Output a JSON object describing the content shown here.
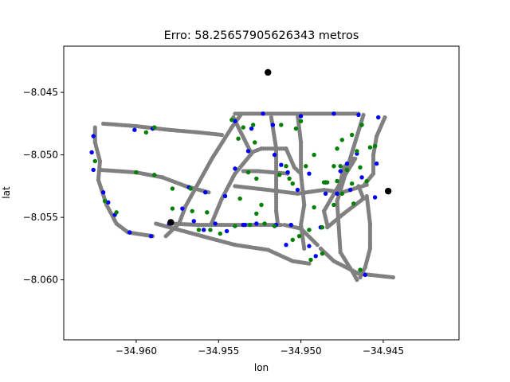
{
  "chart_data": {
    "type": "scatter",
    "title": "Erro: 58.25657905626343 metros",
    "xlabel": "lon",
    "ylabel": "lat",
    "xlim": [
      -34.9644,
      -34.9404
    ],
    "ylim": [
      -8.0648,
      -8.0413
    ],
    "grid": false,
    "x_ticks": [
      {
        "value": -34.96,
        "label": "−34.960"
      },
      {
        "value": -34.955,
        "label": "−34.955"
      },
      {
        "value": -34.95,
        "label": "−34.950"
      },
      {
        "value": -34.945,
        "label": "−34.945"
      }
    ],
    "y_ticks": [
      {
        "value": -8.045,
        "label": "−8.045"
      },
      {
        "value": -8.05,
        "label": "−8.050"
      },
      {
        "value": -8.055,
        "label": "−8.055"
      },
      {
        "value": -8.06,
        "label": "−8.060"
      }
    ],
    "routes": [
      [
        [
          -34.9518,
          -8.0467
        ],
        [
          -34.9465,
          -8.0467
        ]
      ],
      [
        [
          -34.954,
          -8.0467
        ],
        [
          -34.9518,
          -8.0467
        ]
      ],
      [
        [
          -34.9462,
          -8.0468
        ],
        [
          -34.9478,
          -8.0537
        ],
        [
          -34.9476,
          -8.0578
        ],
        [
          -34.9468,
          -8.0595
        ],
        [
          -34.9466,
          -8.06
        ]
      ],
      [
        [
          -34.9536,
          -8.0467
        ],
        [
          -34.9542,
          -8.0478
        ],
        [
          -34.9554,
          -8.0503
        ],
        [
          -34.957,
          -8.0541
        ],
        [
          -34.9574,
          -8.0555
        ],
        [
          -34.9582,
          -8.0565
        ]
      ],
      [
        [
          -34.9541,
          -8.047
        ],
        [
          -34.953,
          -8.0499
        ],
        [
          -34.954,
          -8.0515
        ],
        [
          -34.9548,
          -8.0535
        ],
        [
          -34.9554,
          -8.0554
        ]
      ],
      [
        [
          -34.953,
          -8.0498
        ],
        [
          -34.9524,
          -8.0495
        ],
        [
          -34.9509,
          -8.0495
        ],
        [
          -34.9504,
          -8.051
        ],
        [
          -34.95,
          -8.0515
        ]
      ],
      [
        [
          -34.9535,
          -8.0513
        ],
        [
          -34.9526,
          -8.0513
        ],
        [
          -34.9508,
          -8.0515
        ]
      ],
      [
        [
          -34.954,
          -8.0525
        ],
        [
          -34.952,
          -8.0528
        ],
        [
          -34.9502,
          -8.0531
        ],
        [
          -34.9486,
          -8.0528
        ],
        [
          -34.9475,
          -8.053
        ],
        [
          -34.946,
          -8.0524
        ]
      ],
      [
        [
          -34.962,
          -8.0475
        ],
        [
          -34.96,
          -8.0477
        ],
        [
          -34.958,
          -8.048
        ],
        [
          -34.9562,
          -8.0482
        ],
        [
          -34.9548,
          -8.0484
        ]
      ],
      [
        [
          -34.9625,
          -8.0478
        ],
        [
          -34.9625,
          -8.049
        ],
        [
          -34.9622,
          -8.0505
        ],
        [
          -34.9623,
          -8.052
        ],
        [
          -34.9618,
          -8.054
        ],
        [
          -34.9612,
          -8.0555
        ],
        [
          -34.9605,
          -8.0562
        ],
        [
          -34.959,
          -8.0565
        ]
      ],
      [
        [
          -34.9622,
          -8.0512
        ],
        [
          -34.96,
          -8.0514
        ],
        [
          -34.9584,
          -8.0518
        ],
        [
          -34.957,
          -8.0525
        ],
        [
          -34.9556,
          -8.053
        ]
      ],
      [
        [
          -34.9578,
          -8.0555
        ],
        [
          -34.9563,
          -8.0556
        ],
        [
          -34.9548,
          -8.0556
        ],
        [
          -34.953,
          -8.0556
        ],
        [
          -34.9512,
          -8.0556
        ]
      ],
      [
        [
          -34.9588,
          -8.0555
        ],
        [
          -34.956,
          -8.0565
        ],
        [
          -34.954,
          -8.0572
        ],
        [
          -34.952,
          -8.0576
        ],
        [
          -34.9505,
          -8.0585
        ],
        [
          -34.9495,
          -8.0587
        ]
      ],
      [
        [
          -34.9518,
          -8.047
        ],
        [
          -34.9515,
          -8.0495
        ],
        [
          -34.9515,
          -8.052
        ],
        [
          -34.9515,
          -8.0545
        ],
        [
          -34.9514,
          -8.0556
        ]
      ],
      [
        [
          -34.9502,
          -8.0468
        ],
        [
          -34.95,
          -8.049
        ],
        [
          -34.95,
          -8.0515
        ],
        [
          -34.9498,
          -8.054
        ],
        [
          -34.95,
          -8.0556
        ],
        [
          -34.9498,
          -8.0575
        ]
      ],
      [
        [
          -34.9484,
          -8.0558
        ],
        [
          -34.9474,
          -8.0547
        ],
        [
          -34.9462,
          -8.0535
        ],
        [
          -34.9465,
          -8.0525
        ]
      ],
      [
        [
          -34.946,
          -8.0533
        ],
        [
          -34.9458,
          -8.0555
        ],
        [
          -34.9458,
          -8.0575
        ],
        [
          -34.9461,
          -8.059
        ],
        [
          -34.9464,
          -8.0598
        ]
      ],
      [
        [
          -34.951,
          -8.0556
        ],
        [
          -34.95,
          -8.0559
        ],
        [
          -34.949,
          -8.0572
        ]
      ],
      [
        [
          -34.9488,
          -8.0575
        ],
        [
          -34.948,
          -8.0585
        ],
        [
          -34.9465,
          -8.0595
        ],
        [
          -34.9444,
          -8.0598
        ]
      ],
      [
        [
          -34.9461,
          -8.0523
        ],
        [
          -34.9456,
          -8.0515
        ],
        [
          -34.9456,
          -8.05
        ],
        [
          -34.9454,
          -8.0485
        ],
        [
          -34.9449,
          -8.047
        ]
      ],
      [
        [
          -34.9484,
          -8.0556
        ],
        [
          -34.9486,
          -8.0545
        ],
        [
          -34.9475,
          -8.052
        ],
        [
          -34.9467,
          -8.0503
        ]
      ],
      [
        [
          -34.9468,
          -8.0503
        ],
        [
          -34.9474,
          -8.051
        ],
        [
          -34.9476,
          -8.0522
        ]
      ]
    ],
    "blue_points": [
      [
        -34.9626,
        -8.0485
      ],
      [
        -34.9627,
        -8.0498
      ],
      [
        -34.9626,
        -8.0512
      ],
      [
        -34.962,
        -8.053
      ],
      [
        -34.9617,
        -8.0538
      ],
      [
        -34.9613,
        -8.0548
      ],
      [
        -34.9604,
        -8.0562
      ],
      [
        -34.9591,
        -8.0565
      ],
      [
        -34.958,
        -8.0555
      ],
      [
        -34.9572,
        -8.0543
      ],
      [
        -34.9565,
        -8.0553
      ],
      [
        -34.9559,
        -8.056
      ],
      [
        -34.9552,
        -8.0555
      ],
      [
        -34.9545,
        -8.0561
      ],
      [
        -34.9535,
        -8.0556
      ],
      [
        -34.9527,
        -8.0555
      ],
      [
        -34.9515,
        -8.0556
      ],
      [
        -34.9506,
        -8.0556
      ],
      [
        -34.9546,
        -8.0533
      ],
      [
        -34.954,
        -8.0511
      ],
      [
        -34.9532,
        -8.0497
      ],
      [
        -34.953,
        -8.0479
      ],
      [
        -34.954,
        -8.0473
      ],
      [
        -34.9517,
        -8.0476
      ],
      [
        -34.9516,
        -8.05
      ],
      [
        -34.9512,
        -8.0508
      ],
      [
        -34.9508,
        -8.0514
      ],
      [
        -34.9502,
        -8.0528
      ],
      [
        -34.9495,
        -8.0515
      ],
      [
        -34.9485,
        -8.0522
      ],
      [
        -34.9478,
        -8.0531
      ],
      [
        -34.947,
        -8.0528
      ],
      [
        -34.9463,
        -8.0518
      ],
      [
        -34.9454,
        -8.0507
      ],
      [
        -34.9453,
        -8.047
      ],
      [
        -34.9465,
        -8.0468
      ],
      [
        -34.948,
        -8.0467
      ],
      [
        -34.95,
        -8.0469
      ],
      [
        -34.9523,
        -8.0467
      ],
      [
        -34.9476,
        -8.0513
      ],
      [
        -34.9472,
        -8.0507
      ],
      [
        -34.9466,
        -8.0499
      ],
      [
        -34.9488,
        -8.0558
      ],
      [
        -34.9495,
        -8.0573
      ],
      [
        -34.9491,
        -8.0581
      ],
      [
        -34.9461,
        -8.0596
      ],
      [
        -34.9455,
        -8.0534
      ],
      [
        -34.9601,
        -8.048
      ],
      [
        -34.959,
        -8.0479
      ],
      [
        -34.9568,
        -8.0526
      ],
      [
        -34.9558,
        -8.053
      ],
      [
        -34.9534,
        -8.0556
      ],
      [
        -34.9509,
        -8.0572
      ],
      [
        -34.9485,
        -8.0531
      ]
    ],
    "green_points": [
      [
        -34.9625,
        -8.0505
      ],
      [
        -34.9619,
        -8.0537
      ],
      [
        -34.9612,
        -8.0546
      ],
      [
        -34.9594,
        -8.0482
      ],
      [
        -34.9589,
        -8.0478
      ],
      [
        -34.96,
        -8.0514
      ],
      [
        -34.9589,
        -8.0516
      ],
      [
        -34.9578,
        -8.0527
      ],
      [
        -34.9567,
        -8.0527
      ],
      [
        -34.9578,
        -8.0543
      ],
      [
        -34.9566,
        -8.0545
      ],
      [
        -34.9557,
        -8.0546
      ],
      [
        -34.9562,
        -8.056
      ],
      [
        -34.9555,
        -8.056
      ],
      [
        -34.9549,
        -8.0563
      ],
      [
        -34.954,
        -8.0557
      ],
      [
        -34.9531,
        -8.0556
      ],
      [
        -34.9522,
        -8.0555
      ],
      [
        -34.9516,
        -8.0557
      ],
      [
        -34.9538,
        -8.0487
      ],
      [
        -34.9535,
        -8.0478
      ],
      [
        -34.9542,
        -8.0472
      ],
      [
        -34.9529,
        -8.0476
      ],
      [
        -34.9528,
        -8.049
      ],
      [
        -34.9532,
        -8.0514
      ],
      [
        -34.9527,
        -8.0519
      ],
      [
        -34.9537,
        -8.0535
      ],
      [
        -34.9527,
        -8.0547
      ],
      [
        -34.9524,
        -8.054
      ],
      [
        -34.9509,
        -8.0509
      ],
      [
        -34.9507,
        -8.0519
      ],
      [
        -34.9505,
        -8.0523
      ],
      [
        -34.9513,
        -8.0516
      ],
      [
        -34.9497,
        -8.0509
      ],
      [
        -34.9492,
        -8.05
      ],
      [
        -34.9503,
        -8.0479
      ],
      [
        -34.95,
        -8.0473
      ],
      [
        -34.9512,
        -8.0476
      ],
      [
        -34.9492,
        -8.0542
      ],
      [
        -34.9487,
        -8.0558
      ],
      [
        -34.9495,
        -8.056
      ],
      [
        -34.9501,
        -8.0565
      ],
      [
        -34.9505,
        -8.0568
      ],
      [
        -34.9484,
        -8.0522
      ],
      [
        -34.9478,
        -8.0521
      ],
      [
        -34.9475,
        -8.0531
      ],
      [
        -34.9468,
        -8.0539
      ],
      [
        -34.948,
        -8.054
      ],
      [
        -34.948,
        -8.0509
      ],
      [
        -34.9478,
        -8.0495
      ],
      [
        -34.9475,
        -8.0488
      ],
      [
        -34.9469,
        -8.0484
      ],
      [
        -34.9463,
        -8.0476
      ],
      [
        -34.9466,
        -8.0497
      ],
      [
        -34.9472,
        -8.0512
      ],
      [
        -34.9464,
        -8.051
      ],
      [
        -34.946,
        -8.0521
      ],
      [
        -34.9455,
        -8.0493
      ],
      [
        -34.9458,
        -8.0494
      ],
      [
        -34.9487,
        -8.0579
      ],
      [
        -34.9494,
        -8.0584
      ],
      [
        -34.9464,
        -8.0592
      ],
      [
        -34.9476,
        -8.0509
      ],
      [
        -34.9469,
        -8.0523
      ],
      [
        -34.9486,
        -8.0522
      ]
    ],
    "markers_black": [
      [
        -34.952,
        -8.0434
      ],
      [
        -34.9579,
        -8.0554
      ],
      [
        -34.9447,
        -8.0529
      ]
    ],
    "colors": {
      "route": "#808080",
      "blue": "#0000ff",
      "green": "#008000",
      "marker": "#000000",
      "axes": "#000000"
    }
  }
}
